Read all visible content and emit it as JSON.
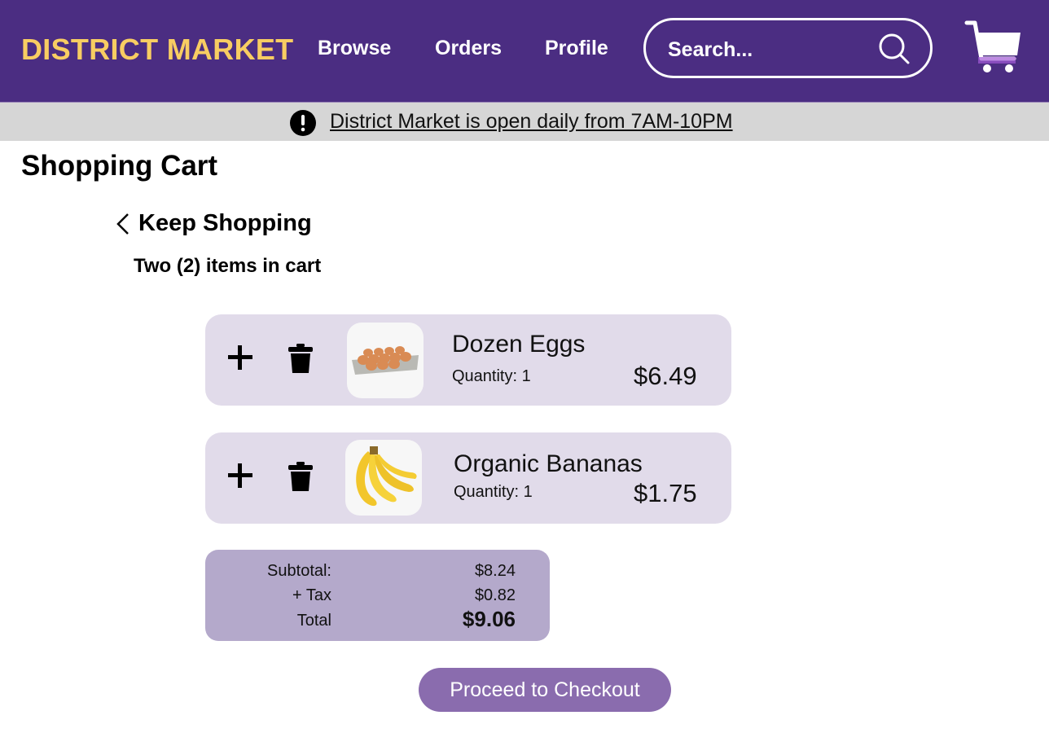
{
  "header": {
    "logo": "DISTRICT MARKET",
    "nav": [
      "Browse",
      "Orders",
      "Profile"
    ],
    "search_placeholder": "Search...",
    "colors": {
      "bar": "#4b2d82",
      "logo": "#f8cd62"
    }
  },
  "banner": {
    "icon": "exclamation-circle-icon",
    "text": "District Market is open daily from 7AM-10PM"
  },
  "page": {
    "title": "Shopping Cart",
    "back_label": "Keep Shopping",
    "item_count": "Two (2) items in cart"
  },
  "cart_items": [
    {
      "name": "Dozen Eggs",
      "quantity": "Quantity: 1",
      "price": "$6.49",
      "image": "eggs-carton"
    },
    {
      "name": "Organic Bananas",
      "quantity": "Quantity: 1",
      "price": "$1.75",
      "image": "banana-bunch"
    }
  ],
  "summary": {
    "subtotal_label": "Subtotal:",
    "subtotal": "$8.24",
    "tax_label": "+ Tax",
    "tax": "$0.82",
    "total_label": "Total",
    "total": "$9.06"
  },
  "checkout_label": "Proceed to Checkout"
}
